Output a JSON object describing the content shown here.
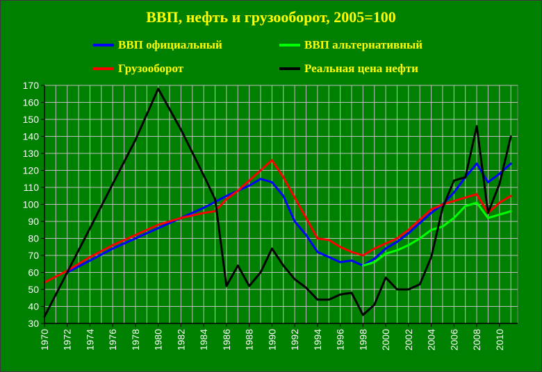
{
  "chart_data": {
    "type": "line",
    "title": "ВВП, нефть и грузооборот, 2005=100",
    "xlabel": "",
    "ylabel": "",
    "xlim": [
      1970,
      2011.6
    ],
    "ylim": [
      30,
      170
    ],
    "grid": true,
    "legend_position": "top",
    "y_ticks": [
      30,
      40,
      50,
      60,
      70,
      80,
      90,
      100,
      110,
      120,
      130,
      140,
      150,
      160,
      170
    ],
    "x_ticks": [
      1970,
      1972,
      1974,
      1976,
      1978,
      1980,
      1982,
      1984,
      1986,
      1988,
      1990,
      1992,
      1994,
      1996,
      1998,
      2000,
      2002,
      2004,
      2006,
      2008,
      2010
    ],
    "series": [
      {
        "name": "ВВП официальный",
        "color": "#0000ff",
        "x": [
          1972,
          1974,
          1976,
          1978,
          1980,
          1982,
          1984,
          1986,
          1988,
          1989,
          1990,
          1991,
          1992,
          1993,
          1994,
          1995,
          1996,
          1997,
          1998,
          1999,
          2000,
          2001,
          2002,
          2003,
          2004,
          2005,
          2006,
          2007,
          2008,
          2009,
          2010,
          2011
        ],
        "y": [
          60,
          67,
          74,
          80,
          86,
          92,
          98,
          105,
          111,
          115,
          113,
          105,
          90,
          82,
          72,
          69,
          66,
          67,
          64,
          68,
          74,
          78,
          83,
          89,
          95,
          100,
          107,
          116,
          124,
          113,
          118,
          124
        ]
      },
      {
        "name": "ВВП альтернативный",
        "color": "#00ff00",
        "x": [
          1998,
          1999,
          2000,
          2001,
          2002,
          2003,
          2004,
          2005,
          2006,
          2007,
          2008,
          2009,
          2010,
          2011
        ],
        "y": [
          64,
          66,
          71,
          73,
          76,
          80,
          85,
          87,
          92,
          99,
          101,
          92,
          94,
          96
        ]
      },
      {
        "name": "Грузооборот",
        "color": "#ff0000",
        "x": [
          1970,
          1972,
          1974,
          1976,
          1978,
          1980,
          1982,
          1984,
          1985,
          1986,
          1987,
          1988,
          1989,
          1990,
          1991,
          1992,
          1993,
          1994,
          1995,
          1996,
          1997,
          1998,
          1999,
          2000,
          2001,
          2002,
          2003,
          2004,
          2005,
          2006,
          2007,
          2008,
          2009,
          2010,
          2011
        ],
        "y": [
          54,
          61,
          69,
          76,
          82,
          88,
          92,
          95,
          96,
          103,
          108,
          114,
          120,
          126,
          116,
          104,
          92,
          80,
          79,
          75,
          72,
          70,
          74,
          77,
          80,
          85,
          91,
          97,
          100,
          102,
          104,
          106,
          95,
          101,
          105
        ]
      },
      {
        "name": "Реальная цена нефти",
        "color": "#000000",
        "x": [
          1970,
          1972,
          1974,
          1976,
          1978,
          1980,
          1982,
          1984,
          1985,
          1986,
          1987,
          1988,
          1989,
          1990,
          1991,
          1992,
          1993,
          1994,
          1995,
          1996,
          1997,
          1998,
          1999,
          2000,
          2001,
          2002,
          2003,
          2004,
          2005,
          2006,
          2007,
          2008,
          2009,
          2010,
          2011
        ],
        "y": [
          34,
          60,
          86,
          112,
          138,
          168,
          144,
          117,
          103,
          52,
          64,
          52,
          60,
          74,
          64,
          56,
          51,
          44,
          44,
          47,
          48,
          35,
          41,
          57,
          50,
          50,
          53,
          69,
          98,
          114,
          116,
          146,
          95,
          112,
          140
        ]
      }
    ]
  }
}
